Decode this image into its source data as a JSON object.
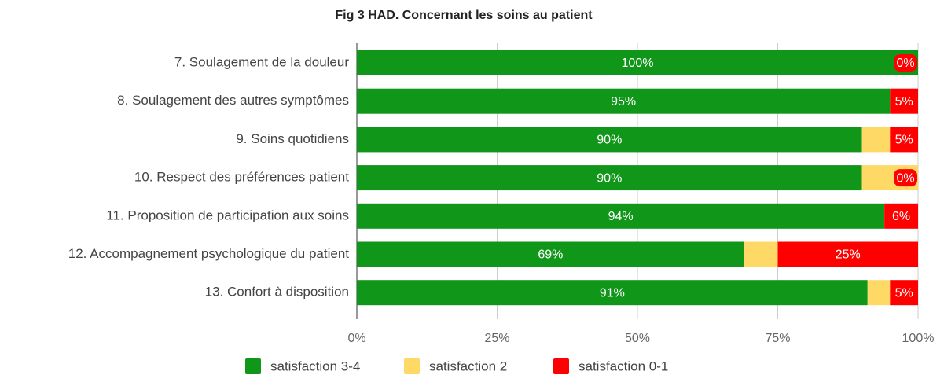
{
  "chart_data": {
    "type": "stacked_bar_horizontal",
    "title": "Fig 3 HAD. Concernant les soins au patient",
    "categories": [
      "7. Soulagement de la douleur",
      "8. Soulagement des autres symptômes",
      "9. Soins quotidiens",
      "10. Respect des préférences patient",
      "11. Proposition de participation aux soins",
      "12. Accompagnement psychologique du patient",
      "13. Confort à disposition"
    ],
    "series": [
      {
        "name": "satisfaction 3-4",
        "color": "#109618",
        "values": [
          100,
          95,
          90,
          90,
          94,
          69,
          91
        ],
        "value_labels": [
          "100%",
          "95%",
          "90%",
          "90%",
          "94%",
          "69%",
          "91%"
        ]
      },
      {
        "name": "satisfaction 2",
        "color": "#ffd966",
        "values": [
          0,
          0,
          5,
          10,
          0,
          6,
          4
        ]
      },
      {
        "name": "satisfaction 0-1",
        "color": "#ff0000",
        "values": [
          0,
          5,
          5,
          0,
          6,
          25,
          5
        ],
        "value_labels": [
          "0%",
          "5%",
          "5%",
          "0%",
          "6%",
          "25%",
          "5%"
        ]
      }
    ],
    "xlim": [
      0,
      100
    ],
    "xticks": [
      {
        "value": 0,
        "label": "0%"
      },
      {
        "value": 25,
        "label": "25%"
      },
      {
        "value": 50,
        "label": "50%"
      },
      {
        "value": 75,
        "label": "75%"
      },
      {
        "value": 100,
        "label": "100%"
      }
    ],
    "grid": true,
    "legend": "bottom"
  }
}
